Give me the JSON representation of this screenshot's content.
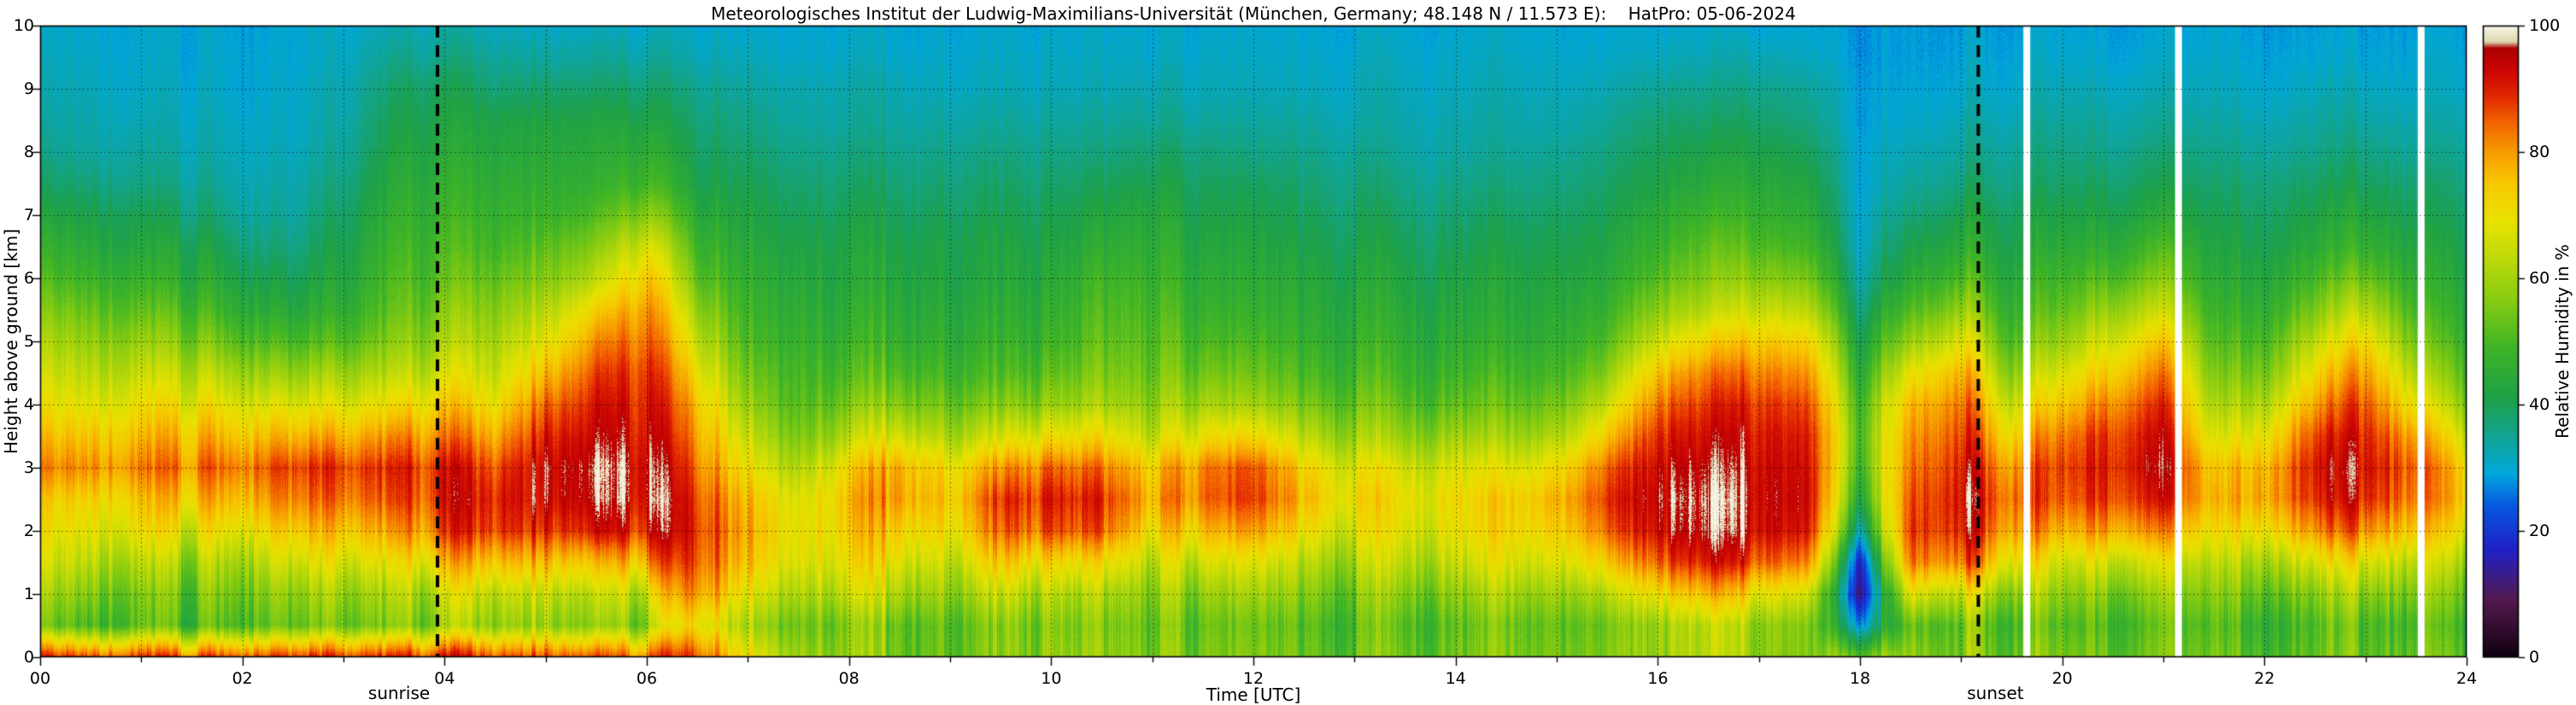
{
  "chart_data": {
    "type": "heatmap",
    "title": "Meteorologisches Institut der Ludwig-Maximilians-Universität (München, Germany; 48.148 N / 11.573 E):    HatPro: 05-06-2024",
    "xlabel": "Time [UTC]",
    "ylabel": "Height above ground [km]",
    "colorbar_label": "Relative Humidity in %",
    "xlim": [
      0,
      24
    ],
    "ylim": [
      0,
      10
    ],
    "clim": [
      0,
      100
    ],
    "grid": "dotted black gridlines every 1 h (vertical) and every 1 km (horizontal)",
    "legend_position": "colorbar-right",
    "xticks": {
      "values": [
        0,
        2,
        4,
        6,
        8,
        10,
        12,
        14,
        16,
        18,
        20,
        22,
        24
      ],
      "labels": [
        "00",
        "02",
        "04",
        "06",
        "08",
        "10",
        "12",
        "14",
        "16",
        "18",
        "20",
        "22",
        "24"
      ],
      "minor_every_hours": 1
    },
    "yticks": {
      "values": [
        0,
        1,
        2,
        3,
        4,
        5,
        6,
        7,
        8,
        9,
        10
      ],
      "labels": [
        "0",
        "1",
        "2",
        "3",
        "4",
        "5",
        "6",
        "7",
        "8",
        "9",
        "10"
      ]
    },
    "colorbar_ticks": {
      "values": [
        0,
        20,
        40,
        60,
        80,
        100
      ],
      "labels": [
        "0",
        "20",
        "40",
        "60",
        "80",
        "100"
      ]
    },
    "annotations": [
      {
        "label": "sunrise",
        "time_utc": 3.93,
        "style": "thick black dashed vertical line"
      },
      {
        "label": "sunset",
        "time_utc": 19.17,
        "style": "thick black dashed vertical line"
      }
    ],
    "missing_data_times_utc": [
      19.65,
      21.15,
      23.55
    ],
    "colormap_stops": [
      [
        0,
        "#100010"
      ],
      [
        9,
        "#541a4e"
      ],
      [
        17,
        "#2020c8"
      ],
      [
        24,
        "#0858e0"
      ],
      [
        29,
        "#00a8dc"
      ],
      [
        35,
        "#12a492"
      ],
      [
        41,
        "#1da048"
      ],
      [
        49,
        "#3eb427"
      ],
      [
        56,
        "#82ca12"
      ],
      [
        63,
        "#bcd90a"
      ],
      [
        69,
        "#e8e200"
      ],
      [
        75,
        "#f6c800"
      ],
      [
        80,
        "#f79c00"
      ],
      [
        85,
        "#f25f00"
      ],
      [
        89,
        "#e02600"
      ],
      [
        93,
        "#cc0404"
      ],
      [
        96.5,
        "#ae0000"
      ],
      [
        97.5,
        "#ded8b0"
      ],
      [
        100,
        "#f8f5e6"
      ]
    ],
    "orientation": "rh_profiles[time_index][height_index]; heights ascending from 0 km",
    "x_hours": [
      0,
      0.5,
      1,
      1.5,
      2,
      2.5,
      3,
      3.5,
      4,
      4.5,
      5,
      5.5,
      6,
      6.5,
      7,
      7.5,
      8,
      8.5,
      9,
      9.5,
      10,
      10.5,
      11,
      11.5,
      12,
      12.5,
      13,
      13.5,
      14,
      14.5,
      15,
      15.5,
      16,
      16.5,
      17,
      17.5,
      18,
      18.5,
      19,
      19.5,
      20,
      20.5,
      21,
      21.5,
      22,
      22.5,
      23,
      23.5,
      24
    ],
    "y_km": [
      0,
      0.5,
      1,
      1.5,
      2,
      2.5,
      3,
      3.5,
      4,
      4.5,
      5,
      5.5,
      6,
      6.5,
      7,
      7.5,
      8,
      8.5,
      9,
      9.5,
      10
    ],
    "rh_profiles": [
      [
        88,
        52,
        58,
        64,
        68,
        72,
        80,
        74,
        68,
        64,
        60,
        55,
        50,
        46,
        42,
        38,
        35,
        33,
        32,
        31,
        30
      ],
      [
        86,
        50,
        56,
        63,
        68,
        73,
        81,
        75,
        68,
        63,
        58,
        53,
        48,
        44,
        41,
        37,
        34,
        33,
        32,
        31,
        30
      ],
      [
        88,
        52,
        55,
        62,
        70,
        75,
        82,
        76,
        70,
        64,
        58,
        52,
        47,
        43,
        40,
        36,
        34,
        32,
        31,
        30,
        30
      ],
      [
        85,
        50,
        54,
        60,
        68,
        76,
        83,
        77,
        70,
        63,
        56,
        50,
        45,
        42,
        38,
        35,
        33,
        32,
        31,
        30,
        30
      ],
      [
        87,
        52,
        56,
        62,
        70,
        78,
        84,
        76,
        68,
        60,
        52,
        46,
        42,
        38,
        35,
        33,
        32,
        31,
        30,
        30,
        29
      ],
      [
        85,
        50,
        55,
        63,
        72,
        80,
        85,
        75,
        65,
        56,
        48,
        42,
        38,
        35,
        33,
        32,
        31,
        30,
        30,
        29,
        29
      ],
      [
        86,
        52,
        57,
        65,
        74,
        82,
        86,
        76,
        66,
        58,
        50,
        45,
        42,
        40,
        38,
        36,
        34,
        33,
        32,
        31,
        30
      ],
      [
        88,
        55,
        60,
        68,
        78,
        85,
        88,
        80,
        70,
        62,
        56,
        52,
        50,
        48,
        46,
        44,
        42,
        40,
        38,
        35,
        32
      ],
      [
        90,
        58,
        64,
        75,
        86,
        90,
        90,
        82,
        74,
        66,
        60,
        56,
        52,
        50,
        48,
        46,
        44,
        42,
        40,
        36,
        33
      ],
      [
        88,
        60,
        66,
        78,
        90,
        92,
        88,
        80,
        72,
        66,
        62,
        58,
        54,
        50,
        48,
        46,
        44,
        42,
        38,
        35,
        32
      ],
      [
        86,
        58,
        64,
        76,
        88,
        93,
        94,
        90,
        84,
        76,
        68,
        62,
        56,
        52,
        48,
        46,
        44,
        42,
        38,
        34,
        31
      ],
      [
        85,
        56,
        62,
        74,
        90,
        95,
        96,
        93,
        90,
        86,
        80,
        72,
        62,
        56,
        50,
        46,
        44,
        42,
        38,
        34,
        31
      ],
      [
        84,
        58,
        66,
        80,
        92,
        96,
        96,
        94,
        92,
        90,
        86,
        82,
        76,
        68,
        58,
        50,
        46,
        42,
        38,
        34,
        31
      ],
      [
        90,
        75,
        85,
        90,
        92,
        90,
        86,
        82,
        78,
        72,
        66,
        60,
        54,
        50,
        46,
        42,
        40,
        38,
        36,
        33,
        31
      ],
      [
        70,
        60,
        68,
        75,
        78,
        76,
        70,
        64,
        58,
        54,
        50,
        48,
        46,
        44,
        42,
        40,
        38,
        36,
        34,
        32,
        30
      ],
      [
        60,
        55,
        62,
        68,
        70,
        68,
        62,
        56,
        52,
        50,
        48,
        46,
        44,
        42,
        40,
        38,
        36,
        34,
        33,
        31,
        30
      ],
      [
        58,
        56,
        64,
        70,
        74,
        76,
        72,
        62,
        55,
        50,
        47,
        45,
        43,
        42,
        40,
        38,
        36,
        34,
        33,
        31,
        30
      ],
      [
        56,
        55,
        63,
        70,
        76,
        82,
        80,
        68,
        58,
        52,
        48,
        46,
        44,
        42,
        40,
        38,
        36,
        34,
        33,
        31,
        30
      ],
      [
        55,
        54,
        60,
        66,
        72,
        76,
        72,
        62,
        55,
        50,
        47,
        45,
        43,
        42,
        40,
        38,
        36,
        34,
        32,
        31,
        30
      ],
      [
        57,
        56,
        64,
        74,
        84,
        88,
        80,
        66,
        56,
        50,
        47,
        45,
        43,
        42,
        40,
        38,
        36,
        34,
        32,
        31,
        30
      ],
      [
        58,
        56,
        62,
        72,
        86,
        90,
        84,
        70,
        58,
        52,
        48,
        46,
        44,
        42,
        40,
        38,
        36,
        34,
        32,
        31,
        30
      ],
      [
        57,
        55,
        60,
        70,
        84,
        88,
        82,
        70,
        60,
        55,
        52,
        50,
        48,
        45,
        42,
        39,
        36,
        34,
        32,
        31,
        30
      ],
      [
        56,
        54,
        58,
        64,
        72,
        78,
        74,
        64,
        58,
        54,
        52,
        50,
        48,
        46,
        44,
        41,
        38,
        35,
        33,
        31,
        30
      ],
      [
        55,
        53,
        58,
        66,
        76,
        84,
        82,
        70,
        60,
        54,
        50,
        47,
        45,
        43,
        41,
        39,
        37,
        34,
        32,
        31,
        30
      ],
      [
        56,
        54,
        60,
        68,
        80,
        88,
        86,
        72,
        60,
        54,
        50,
        47,
        45,
        43,
        41,
        39,
        36,
        34,
        32,
        31,
        30
      ],
      [
        55,
        53,
        58,
        64,
        72,
        78,
        74,
        64,
        56,
        51,
        48,
        46,
        44,
        42,
        40,
        38,
        36,
        34,
        32,
        31,
        30
      ],
      [
        54,
        52,
        56,
        62,
        68,
        72,
        68,
        60,
        54,
        50,
        47,
        45,
        43,
        41,
        39,
        37,
        35,
        33,
        32,
        31,
        30
      ],
      [
        54,
        52,
        57,
        63,
        68,
        70,
        66,
        58,
        52,
        48,
        46,
        44,
        42,
        40,
        38,
        36,
        34,
        33,
        32,
        31,
        30
      ],
      [
        55,
        53,
        58,
        65,
        70,
        72,
        68,
        60,
        53,
        49,
        46,
        44,
        42,
        40,
        38,
        36,
        34,
        33,
        32,
        31,
        30
      ],
      [
        55,
        53,
        59,
        66,
        71,
        72,
        66,
        58,
        52,
        48,
        45,
        43,
        42,
        40,
        38,
        36,
        34,
        33,
        32,
        31,
        30
      ],
      [
        56,
        54,
        60,
        68,
        74,
        78,
        72,
        62,
        55,
        50,
        47,
        45,
        43,
        41,
        39,
        37,
        35,
        33,
        32,
        31,
        30
      ],
      [
        58,
        56,
        64,
        76,
        86,
        90,
        86,
        76,
        66,
        58,
        52,
        48,
        45,
        43,
        41,
        39,
        37,
        35,
        33,
        31,
        30
      ],
      [
        60,
        60,
        72,
        86,
        94,
        96,
        94,
        90,
        84,
        76,
        66,
        58,
        52,
        48,
        45,
        42,
        40,
        38,
        35,
        32,
        30
      ],
      [
        62,
        62,
        76,
        90,
        96,
        97,
        95,
        92,
        88,
        82,
        72,
        62,
        56,
        52,
        48,
        44,
        41,
        38,
        35,
        32,
        30
      ],
      [
        60,
        60,
        72,
        88,
        95,
        96,
        95,
        93,
        90,
        84,
        76,
        66,
        58,
        52,
        48,
        45,
        42,
        39,
        36,
        33,
        30
      ],
      [
        58,
        58,
        68,
        84,
        93,
        95,
        94,
        92,
        88,
        82,
        74,
        64,
        56,
        50,
        46,
        43,
        40,
        37,
        35,
        32,
        30
      ],
      [
        55,
        30,
        15,
        20,
        35,
        45,
        50,
        52,
        50,
        46,
        42,
        38,
        34,
        32,
        31,
        30,
        30,
        29,
        29,
        28,
        28
      ],
      [
        60,
        55,
        70,
        85,
        90,
        88,
        85,
        82,
        78,
        70,
        60,
        52,
        46,
        42,
        38,
        35,
        33,
        31,
        30,
        29,
        29
      ],
      [
        58,
        56,
        68,
        86,
        93,
        95,
        93,
        90,
        86,
        80,
        70,
        60,
        52,
        46,
        42,
        38,
        35,
        33,
        31,
        30,
        29
      ],
      [
        55,
        52,
        60,
        72,
        82,
        86,
        82,
        74,
        66,
        58,
        52,
        48,
        45,
        42,
        40,
        37,
        35,
        33,
        31,
        30,
        29
      ],
      [
        54,
        50,
        56,
        64,
        76,
        84,
        86,
        82,
        74,
        66,
        58,
        52,
        48,
        44,
        41,
        38,
        36,
        34,
        32,
        30,
        29
      ],
      [
        55,
        52,
        58,
        68,
        82,
        90,
        92,
        90,
        84,
        76,
        68,
        60,
        52,
        46,
        42,
        39,
        36,
        34,
        32,
        30,
        29
      ],
      [
        54,
        51,
        57,
        66,
        80,
        90,
        94,
        92,
        88,
        82,
        74,
        64,
        56,
        50,
        44,
        40,
        37,
        34,
        32,
        30,
        29
      ],
      [
        52,
        49,
        54,
        60,
        68,
        74,
        72,
        64,
        58,
        53,
        49,
        46,
        43,
        41,
        39,
        37,
        35,
        33,
        31,
        30,
        29
      ],
      [
        53,
        50,
        56,
        64,
        74,
        82,
        80,
        72,
        64,
        57,
        52,
        48,
        45,
        42,
        40,
        38,
        35,
        33,
        31,
        30,
        29
      ],
      [
        54,
        52,
        58,
        68,
        82,
        90,
        92,
        88,
        80,
        72,
        64,
        56,
        50,
        45,
        42,
        39,
        36,
        34,
        32,
        30,
        29
      ],
      [
        55,
        53,
        60,
        70,
        84,
        92,
        94,
        92,
        88,
        82,
        74,
        64,
        55,
        48,
        44,
        40,
        37,
        34,
        32,
        30,
        29
      ],
      [
        54,
        51,
        57,
        65,
        76,
        84,
        86,
        80,
        70,
        62,
        55,
        50,
        46,
        43,
        40,
        38,
        35,
        33,
        31,
        30,
        29
      ],
      [
        53,
        50,
        55,
        62,
        70,
        76,
        74,
        66,
        58,
        52,
        48,
        45,
        43,
        41,
        39,
        37,
        35,
        33,
        31,
        30,
        29
      ]
    ]
  }
}
